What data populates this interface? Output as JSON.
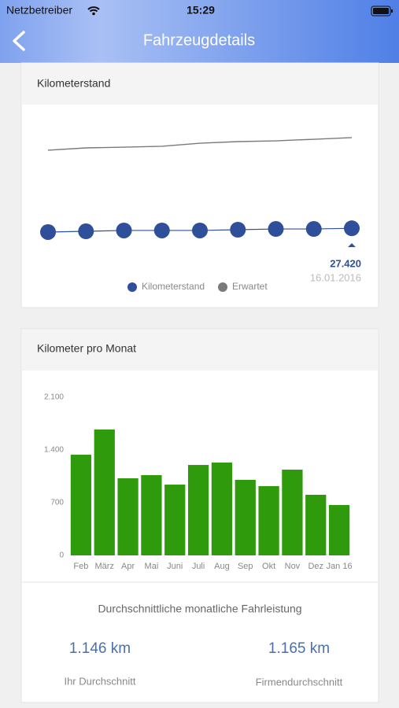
{
  "status_bar": {
    "carrier": "Netzbetreiber",
    "time": "15:29"
  },
  "nav": {
    "title": "Fahrzeugdetails"
  },
  "chart_data": [
    {
      "type": "line",
      "title": "Kilometerstand",
      "categories": [
        null,
        null,
        null,
        null,
        null,
        null,
        null,
        null,
        null
      ],
      "ylim": [
        25000,
        40000
      ],
      "series": [
        {
          "name": "Kilometerstand",
          "color": "#2f4f9a",
          "values": [
            26970,
            27060,
            27160,
            27160,
            27160,
            27250,
            27340,
            27340,
            27420
          ],
          "value_labels": [
            null,
            null,
            null,
            null,
            null,
            null,
            null,
            null,
            "27.420"
          ]
        },
        {
          "name": "Erwartet",
          "color": "#7a7a7a",
          "values": [
            36720,
            37000,
            37090,
            37190,
            37560,
            37750,
            37840,
            38030,
            38220
          ]
        }
      ],
      "annotation": "16.01.2016"
    },
    {
      "type": "bar",
      "title": "Kilometer pro Monat",
      "categories": [
        "Feb",
        "März",
        "Apr",
        "Mai",
        "Juni",
        "Juli",
        "Aug",
        "Sep",
        "Okt",
        "Nov",
        "Dez",
        "Jan 16"
      ],
      "values": [
        1337,
        1672,
        1024,
        1066,
        940,
        1201,
        1233,
        1003,
        920,
        1139,
        805,
        669
      ],
      "color": "#2e9a0c",
      "ylim": [
        0,
        2100
      ],
      "yticks": [
        0,
        700,
        {
          "value": 1400,
          "label": "1.400"
        },
        {
          "value": 2100,
          "label": "2.100"
        }
      ],
      "grid": false
    }
  ],
  "summary": {
    "title": "Durchschnittliche monatliche Fahrleistung",
    "items": [
      {
        "value": "1.146 km",
        "label": "Ihr Durchschnitt"
      },
      {
        "value": "1.165 km",
        "label": "Firmendurchschnitt"
      }
    ]
  }
}
